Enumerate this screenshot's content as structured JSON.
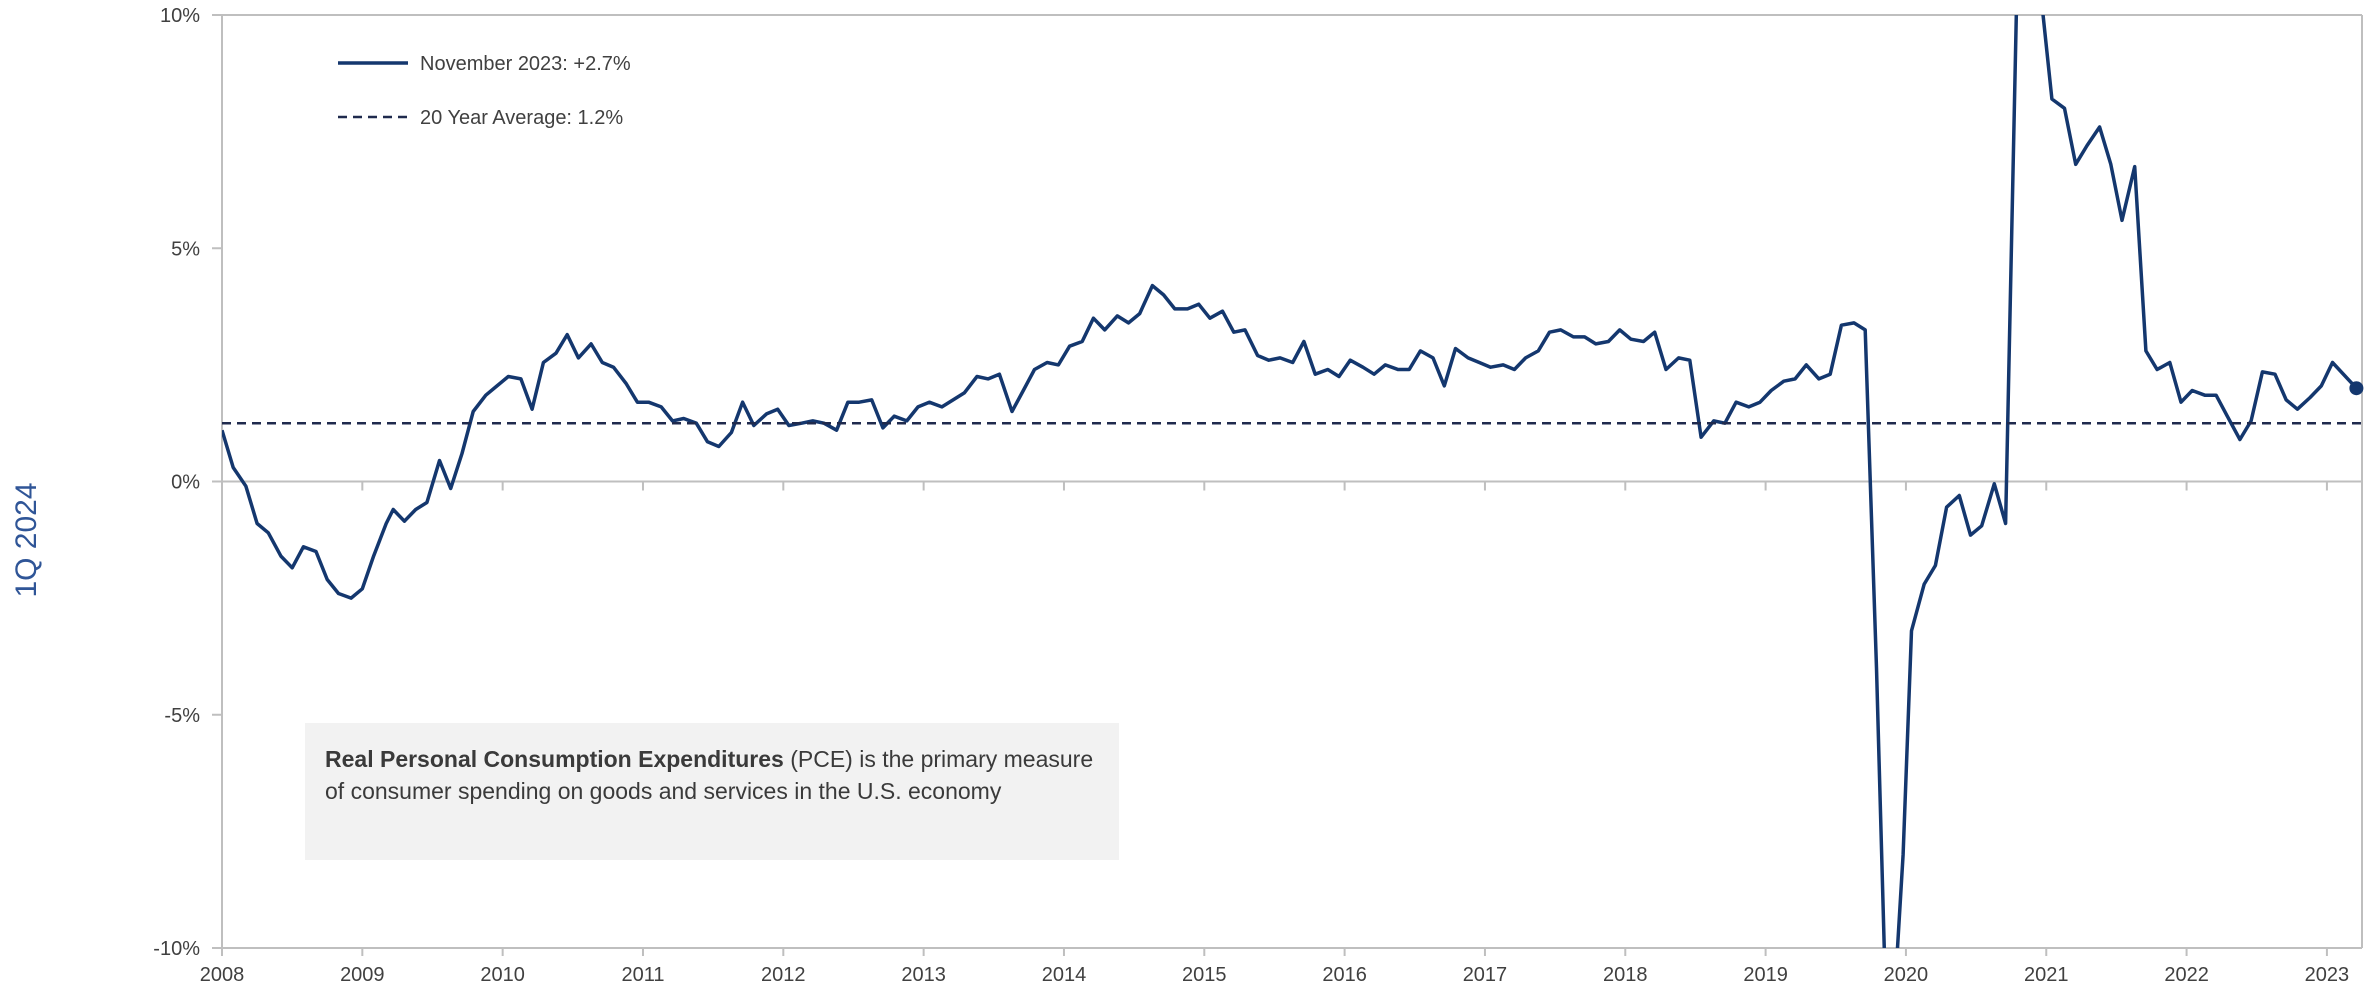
{
  "side_label": "1Q 2024",
  "annotation": {
    "bold": "Real Personal Consumption Expenditures",
    "rest": " (PCE) is the primary measure of consumer spending on goods and services in the U.S. economy"
  },
  "colors": {
    "series": "#14376e",
    "average": "#1f2a4d",
    "axis": "#bfbfbf",
    "text": "#404040",
    "annotation_bg": "#f2f2f2"
  },
  "chart_data": {
    "type": "line",
    "title": "",
    "xlabel": "",
    "ylabel": "",
    "ylim": [
      -10,
      10
    ],
    "xlim": [
      2008,
      2023.25
    ],
    "grid": false,
    "legend_position": "top-left",
    "y_ticks": [
      {
        "value": 10,
        "label": "10%"
      },
      {
        "value": 5,
        "label": "5%"
      },
      {
        "value": 0,
        "label": "0%"
      },
      {
        "value": -5,
        "label": "-5%"
      },
      {
        "value": -10,
        "label": "-10%"
      }
    ],
    "x_ticks": [
      {
        "value": 2008,
        "label": "2008"
      },
      {
        "value": 2009,
        "label": "2009"
      },
      {
        "value": 2010,
        "label": "2010"
      },
      {
        "value": 2011,
        "label": "2011"
      },
      {
        "value": 2012,
        "label": "2012"
      },
      {
        "value": 2013,
        "label": "2013"
      },
      {
        "value": 2014,
        "label": "2014"
      },
      {
        "value": 2015,
        "label": "2015"
      },
      {
        "value": 2016,
        "label": "2016"
      },
      {
        "value": 2017,
        "label": "2017"
      },
      {
        "value": 2018,
        "label": "2018"
      },
      {
        "value": 2019,
        "label": "2019"
      },
      {
        "value": 2020,
        "label": "2020"
      },
      {
        "value": 2021,
        "label": "2021"
      },
      {
        "value": 2022,
        "label": "2022"
      },
      {
        "value": 2023,
        "label": "2023"
      }
    ],
    "series": [
      {
        "name": "November 2023:  +2.7%",
        "style": "solid",
        "points": [
          [
            2008.0,
            1.1
          ],
          [
            2008.08,
            0.3
          ],
          [
            2008.17,
            -0.1
          ],
          [
            2008.25,
            -0.9
          ],
          [
            2008.33,
            -1.1
          ],
          [
            2008.42,
            -1.6
          ],
          [
            2008.5,
            -1.85
          ],
          [
            2008.58,
            -1.4
          ],
          [
            2008.67,
            -1.5
          ],
          [
            2008.75,
            -2.1
          ],
          [
            2008.83,
            -2.4
          ],
          [
            2008.92,
            -2.5
          ],
          [
            2009.0,
            -2.3
          ],
          [
            2009.08,
            -1.6
          ],
          [
            2009.17,
            -0.9
          ],
          [
            2009.22,
            -0.6
          ],
          [
            2009.3,
            -0.85
          ],
          [
            2009.38,
            -0.6
          ],
          [
            2009.46,
            -0.45
          ],
          [
            2009.55,
            0.45
          ],
          [
            2009.63,
            -0.15
          ],
          [
            2009.71,
            0.6
          ],
          [
            2009.79,
            1.5
          ],
          [
            2009.88,
            1.85
          ],
          [
            2009.96,
            2.05
          ],
          [
            2010.04,
            2.25
          ],
          [
            2010.13,
            2.2
          ],
          [
            2010.21,
            1.55
          ],
          [
            2010.29,
            2.55
          ],
          [
            2010.38,
            2.75
          ],
          [
            2010.46,
            3.15
          ],
          [
            2010.54,
            2.65
          ],
          [
            2010.63,
            2.95
          ],
          [
            2010.71,
            2.55
          ],
          [
            2010.79,
            2.45
          ],
          [
            2010.88,
            2.1
          ],
          [
            2010.96,
            1.7
          ],
          [
            2011.04,
            1.7
          ],
          [
            2011.13,
            1.6
          ],
          [
            2011.21,
            1.3
          ],
          [
            2011.29,
            1.35
          ],
          [
            2011.38,
            1.25
          ],
          [
            2011.46,
            0.85
          ],
          [
            2011.54,
            0.75
          ],
          [
            2011.63,
            1.05
          ],
          [
            2011.71,
            1.7
          ],
          [
            2011.79,
            1.2
          ],
          [
            2011.88,
            1.45
          ],
          [
            2011.96,
            1.55
          ],
          [
            2012.04,
            1.2
          ],
          [
            2012.13,
            1.25
          ],
          [
            2012.21,
            1.3
          ],
          [
            2012.29,
            1.25
          ],
          [
            2012.38,
            1.1
          ],
          [
            2012.46,
            1.7
          ],
          [
            2012.54,
            1.7
          ],
          [
            2012.63,
            1.75
          ],
          [
            2012.71,
            1.15
          ],
          [
            2012.79,
            1.4
          ],
          [
            2012.88,
            1.3
          ],
          [
            2012.96,
            1.6
          ],
          [
            2013.04,
            1.7
          ],
          [
            2013.13,
            1.6
          ],
          [
            2013.21,
            1.75
          ],
          [
            2013.29,
            1.9
          ],
          [
            2013.38,
            2.25
          ],
          [
            2013.46,
            2.2
          ],
          [
            2013.54,
            2.3
          ],
          [
            2013.63,
            1.5
          ],
          [
            2013.71,
            1.95
          ],
          [
            2013.79,
            2.4
          ],
          [
            2013.88,
            2.55
          ],
          [
            2013.96,
            2.5
          ],
          [
            2014.04,
            2.9
          ],
          [
            2014.13,
            3.0
          ],
          [
            2014.21,
            3.5
          ],
          [
            2014.29,
            3.25
          ],
          [
            2014.38,
            3.55
          ],
          [
            2014.46,
            3.4
          ],
          [
            2014.54,
            3.6
          ],
          [
            2014.63,
            4.2
          ],
          [
            2014.71,
            4.0
          ],
          [
            2014.79,
            3.7
          ],
          [
            2014.88,
            3.7
          ],
          [
            2014.96,
            3.8
          ],
          [
            2015.04,
            3.5
          ],
          [
            2015.13,
            3.65
          ],
          [
            2015.21,
            3.2
          ],
          [
            2015.29,
            3.25
          ],
          [
            2015.38,
            2.7
          ],
          [
            2015.46,
            2.6
          ],
          [
            2015.54,
            2.65
          ],
          [
            2015.63,
            2.55
          ],
          [
            2015.71,
            3.0
          ],
          [
            2015.79,
            2.3
          ],
          [
            2015.88,
            2.4
          ],
          [
            2015.96,
            2.25
          ],
          [
            2016.04,
            2.6
          ],
          [
            2016.13,
            2.45
          ],
          [
            2016.21,
            2.3
          ],
          [
            2016.29,
            2.5
          ],
          [
            2016.38,
            2.4
          ],
          [
            2016.46,
            2.4
          ],
          [
            2016.54,
            2.8
          ],
          [
            2016.63,
            2.65
          ],
          [
            2016.71,
            2.05
          ],
          [
            2016.79,
            2.85
          ],
          [
            2016.88,
            2.65
          ],
          [
            2016.96,
            2.55
          ],
          [
            2017.04,
            2.45
          ],
          [
            2017.13,
            2.5
          ],
          [
            2017.21,
            2.4
          ],
          [
            2017.29,
            2.65
          ],
          [
            2017.38,
            2.8
          ],
          [
            2017.46,
            3.2
          ],
          [
            2017.54,
            3.25
          ],
          [
            2017.63,
            3.1
          ],
          [
            2017.71,
            3.1
          ],
          [
            2017.79,
            2.95
          ],
          [
            2017.88,
            3.0
          ],
          [
            2017.96,
            3.25
          ],
          [
            2018.04,
            3.05
          ],
          [
            2018.13,
            3.0
          ],
          [
            2018.21,
            3.2
          ],
          [
            2018.29,
            2.4
          ],
          [
            2018.38,
            2.65
          ],
          [
            2018.46,
            2.6
          ],
          [
            2018.54,
            0.95
          ],
          [
            2018.63,
            1.3
          ],
          [
            2018.71,
            1.25
          ],
          [
            2018.79,
            1.7
          ],
          [
            2018.88,
            1.6
          ],
          [
            2018.96,
            1.7
          ],
          [
            2019.04,
            1.95
          ],
          [
            2019.13,
            2.15
          ],
          [
            2019.21,
            2.2
          ],
          [
            2019.29,
            2.5
          ],
          [
            2019.38,
            2.2
          ],
          [
            2019.46,
            2.3
          ],
          [
            2019.54,
            3.35
          ],
          [
            2019.63,
            3.4
          ],
          [
            2019.71,
            3.25
          ],
          [
            2019.79,
            -4.0
          ],
          [
            2019.85,
            -10.5
          ],
          [
            2019.93,
            -10.5
          ],
          [
            2019.98,
            -8.0
          ],
          [
            2020.04,
            -3.2
          ],
          [
            2020.13,
            -2.2
          ],
          [
            2020.21,
            -1.8
          ],
          [
            2020.29,
            -0.55
          ],
          [
            2020.38,
            -0.3
          ],
          [
            2020.46,
            -1.15
          ],
          [
            2020.54,
            -0.95
          ],
          [
            2020.63,
            -0.05
          ],
          [
            2020.71,
            -0.9
          ],
          [
            2020.79,
            10.5
          ],
          [
            2020.96,
            10.5
          ],
          [
            2021.04,
            8.2
          ],
          [
            2021.13,
            8.0
          ],
          [
            2021.21,
            6.8
          ],
          [
            2021.29,
            7.2
          ],
          [
            2021.38,
            7.6
          ],
          [
            2021.46,
            6.8
          ],
          [
            2021.54,
            5.6
          ],
          [
            2021.63,
            6.75
          ],
          [
            2021.71,
            2.8
          ],
          [
            2021.79,
            2.4
          ],
          [
            2021.88,
            2.55
          ],
          [
            2021.96,
            1.7
          ],
          [
            2022.04,
            1.95
          ],
          [
            2022.13,
            1.85
          ],
          [
            2022.21,
            1.85
          ],
          [
            2022.29,
            1.4
          ],
          [
            2022.38,
            0.9
          ],
          [
            2022.46,
            1.3
          ],
          [
            2022.54,
            2.35
          ],
          [
            2022.63,
            2.3
          ],
          [
            2022.71,
            1.75
          ],
          [
            2022.79,
            1.55
          ],
          [
            2022.88,
            1.8
          ],
          [
            2022.96,
            2.05
          ],
          [
            2023.04,
            2.55
          ],
          [
            2023.21,
            2.0
          ]
        ]
      },
      {
        "name": "20 Year Average: 1.2%",
        "style": "dashed",
        "points": [
          [
            2008.0,
            1.25
          ],
          [
            2023.25,
            1.25
          ]
        ]
      }
    ]
  }
}
